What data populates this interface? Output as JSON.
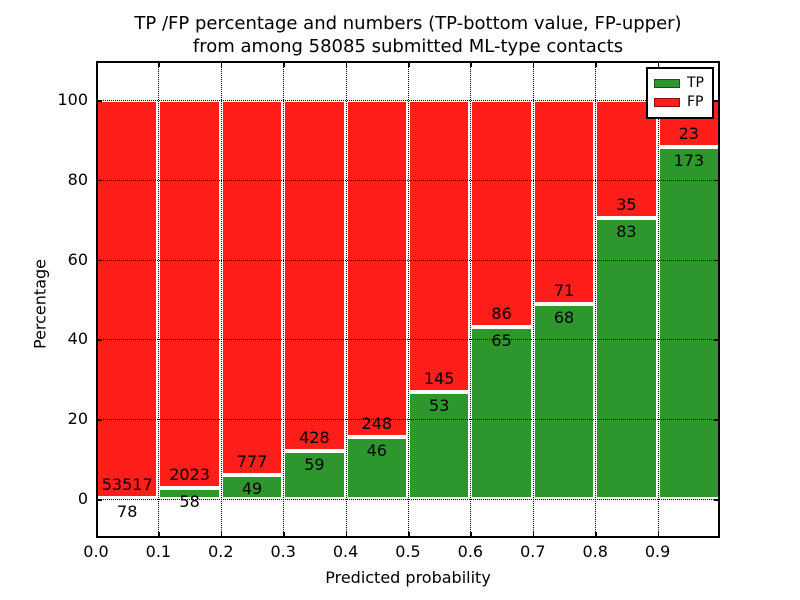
{
  "chart_data": {
    "type": "bar",
    "stacked": true,
    "normalized_to_percent": true,
    "title_line1": "TP /FP percentage and numbers (TP-bottom value, FP-upper)",
    "title_line2": "from among 58085 submitted ML-type contacts",
    "total_contacts": 58085,
    "xlabel": "Predicted probability",
    "ylabel": "Percentage",
    "categories": [
      "0.0",
      "0.1",
      "0.2",
      "0.3",
      "0.4",
      "0.5",
      "0.6",
      "0.7",
      "0.8",
      "0.9"
    ],
    "series": [
      {
        "name": "TP",
        "color": "#2d962d",
        "counts": [
          78,
          58,
          49,
          59,
          46,
          53,
          65,
          68,
          83,
          173
        ]
      },
      {
        "name": "FP",
        "color": "#ff1e19",
        "counts": [
          53517,
          2023,
          777,
          428,
          248,
          145,
          86,
          71,
          35,
          23
        ]
      }
    ],
    "yticks": [
      0,
      20,
      40,
      60,
      80,
      100
    ],
    "xticks": [
      "0.0",
      "0.1",
      "0.2",
      "0.3",
      "0.4",
      "0.5",
      "0.6",
      "0.7",
      "0.8",
      "0.9"
    ],
    "ylim": [
      -10,
      110
    ],
    "xlim": [
      0.0,
      1.0
    ],
    "grid": true,
    "legend_position": "upper right",
    "legend_entries": [
      "TP",
      "FP"
    ]
  }
}
